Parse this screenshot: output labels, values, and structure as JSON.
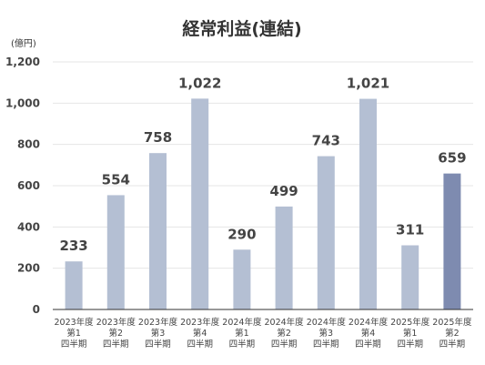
{
  "chart_data": {
    "type": "bar",
    "title": "経常利益(連結)",
    "unit_label": "(億円)",
    "ylim": [
      0,
      1200
    ],
    "yticks": [
      "0",
      "200",
      "400",
      "600",
      "800",
      "1,000",
      "1,200"
    ],
    "grid": true,
    "categories": [
      [
        "2023年度",
        "第1",
        "四半期"
      ],
      [
        "2023年度",
        "第2",
        "四半期"
      ],
      [
        "2023年度",
        "第3",
        "四半期"
      ],
      [
        "2023年度",
        "第4",
        "四半期"
      ],
      [
        "2024年度",
        "第1",
        "四半期"
      ],
      [
        "2024年度",
        "第2",
        "四半期"
      ],
      [
        "2024年度",
        "第3",
        "四半期"
      ],
      [
        "2024年度",
        "第4",
        "四半期"
      ],
      [
        "2025年度",
        "第1",
        "四半期"
      ],
      [
        "2025年度",
        "第2",
        "四半期"
      ]
    ],
    "values": [
      233,
      554,
      758,
      1022,
      290,
      499,
      743,
      1021,
      311,
      659
    ],
    "value_labels": [
      "233",
      "554",
      "758",
      "1,022",
      "290",
      "499",
      "743",
      "1,021",
      "311",
      "659"
    ],
    "colors": {
      "bar": "#b4bfd3",
      "highlight_bar": "#7e8bb0",
      "grid": "#e6e6e6",
      "axis": "#333333"
    },
    "highlight_index": 9
  }
}
